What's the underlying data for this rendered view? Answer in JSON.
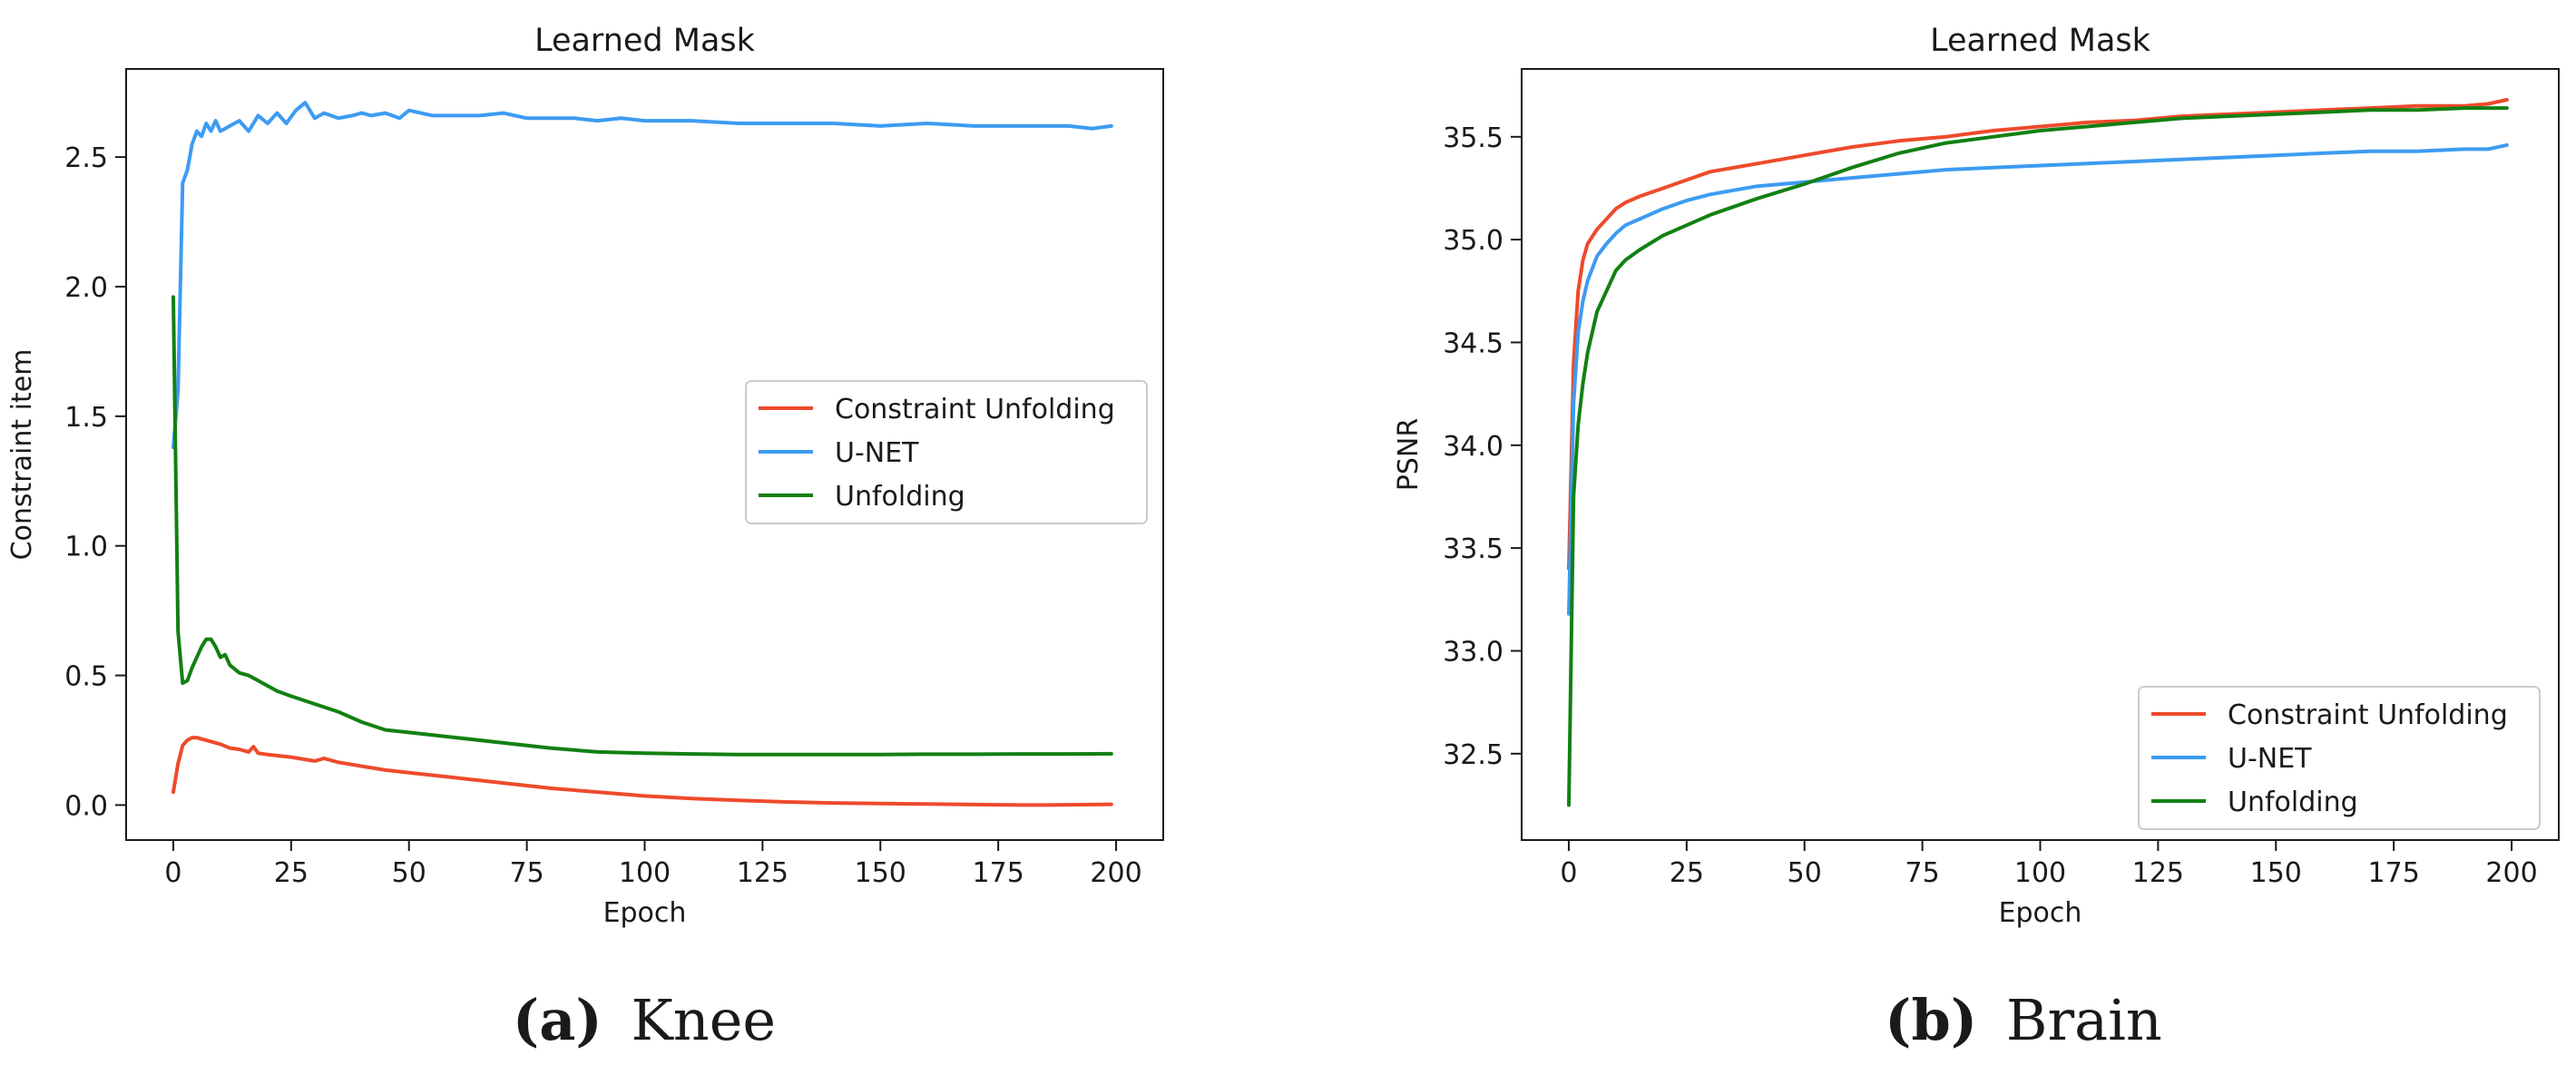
{
  "colors": {
    "constraint_unfolding": "#ee4a2c",
    "unet": "#3d9bf2",
    "unfolding": "#128012",
    "axis": "#1a1a1a"
  },
  "captions": [
    {
      "letter": "(a)",
      "label": "Knee"
    },
    {
      "letter": "(b)",
      "label": "Brain"
    }
  ],
  "chart_data": [
    {
      "type": "line",
      "title": "Learned Mask",
      "xlabel": "Epoch",
      "ylabel": "Constraint item",
      "xlim": [
        -10,
        210
      ],
      "ylim": [
        -0.135,
        2.84
      ],
      "xticks": [
        0,
        25,
        50,
        75,
        100,
        125,
        150,
        175,
        200
      ],
      "yticks": [
        0.0,
        0.5,
        1.0,
        1.5,
        2.0,
        2.5
      ],
      "tick_decimals": 1,
      "grid": false,
      "legend": "center-right",
      "series": [
        {
          "name": "Constraint Unfolding",
          "color_key": "constraint_unfolding",
          "x": [
            0,
            1,
            2,
            3,
            4,
            5,
            6,
            8,
            10,
            12,
            14,
            16,
            17,
            18,
            20,
            25,
            30,
            32,
            35,
            40,
            45,
            50,
            60,
            70,
            80,
            90,
            100,
            110,
            120,
            130,
            140,
            150,
            160,
            170,
            180,
            185,
            190,
            195,
            199
          ],
          "y": [
            0.05,
            0.16,
            0.23,
            0.25,
            0.26,
            0.26,
            0.255,
            0.245,
            0.235,
            0.22,
            0.215,
            0.205,
            0.225,
            0.2,
            0.195,
            0.185,
            0.17,
            0.18,
            0.165,
            0.15,
            0.135,
            0.125,
            0.105,
            0.085,
            0.065,
            0.05,
            0.035,
            0.025,
            0.018,
            0.012,
            0.008,
            0.006,
            0.004,
            0.002,
            0.0,
            0.0,
            0.001,
            0.002,
            0.003
          ]
        },
        {
          "name": "U-NET",
          "color_key": "unet",
          "x": [
            0,
            1,
            2,
            3,
            4,
            5,
            6,
            7,
            8,
            9,
            10,
            12,
            14,
            16,
            18,
            20,
            22,
            24,
            26,
            28,
            30,
            32,
            35,
            38,
            40,
            42,
            45,
            48,
            50,
            55,
            60,
            65,
            70,
            75,
            80,
            85,
            90,
            95,
            100,
            110,
            120,
            130,
            140,
            150,
            160,
            170,
            180,
            190,
            195,
            199
          ],
          "y": [
            1.38,
            1.6,
            2.4,
            2.45,
            2.55,
            2.6,
            2.58,
            2.63,
            2.6,
            2.64,
            2.6,
            2.62,
            2.64,
            2.6,
            2.66,
            2.63,
            2.67,
            2.63,
            2.68,
            2.71,
            2.65,
            2.67,
            2.65,
            2.66,
            2.67,
            2.66,
            2.67,
            2.65,
            2.68,
            2.66,
            2.66,
            2.66,
            2.67,
            2.65,
            2.65,
            2.65,
            2.64,
            2.65,
            2.64,
            2.64,
            2.63,
            2.63,
            2.63,
            2.62,
            2.63,
            2.62,
            2.62,
            2.62,
            2.61,
            2.62
          ]
        },
        {
          "name": "Unfolding",
          "color_key": "unfolding",
          "x": [
            0,
            1,
            2,
            3,
            4,
            5,
            6,
            7,
            8,
            9,
            10,
            11,
            12,
            14,
            16,
            18,
            20,
            22,
            25,
            30,
            35,
            40,
            45,
            50,
            60,
            70,
            80,
            90,
            100,
            110,
            120,
            130,
            140,
            150,
            160,
            170,
            180,
            190,
            199
          ],
          "y": [
            1.96,
            0.67,
            0.47,
            0.48,
            0.53,
            0.57,
            0.61,
            0.64,
            0.64,
            0.61,
            0.57,
            0.58,
            0.54,
            0.51,
            0.5,
            0.48,
            0.46,
            0.44,
            0.42,
            0.39,
            0.36,
            0.32,
            0.29,
            0.28,
            0.26,
            0.24,
            0.22,
            0.205,
            0.2,
            0.197,
            0.195,
            0.195,
            0.195,
            0.195,
            0.196,
            0.196,
            0.197,
            0.197,
            0.198
          ]
        }
      ]
    },
    {
      "type": "line",
      "title": "Learned Mask",
      "xlabel": "Epoch",
      "ylabel": "PSNR",
      "xlim": [
        -10,
        210
      ],
      "ylim": [
        32.08,
        35.83
      ],
      "xticks": [
        0,
        25,
        50,
        75,
        100,
        125,
        150,
        175,
        200
      ],
      "yticks": [
        32.5,
        33.0,
        33.5,
        34.0,
        34.5,
        35.0,
        35.5
      ],
      "tick_decimals": 1,
      "grid": false,
      "legend": "lower-right",
      "series": [
        {
          "name": "Constraint Unfolding",
          "color_key": "constraint_unfolding",
          "x": [
            0,
            1,
            2,
            3,
            4,
            6,
            8,
            10,
            12,
            15,
            20,
            25,
            30,
            40,
            50,
            60,
            70,
            80,
            90,
            100,
            110,
            120,
            130,
            140,
            150,
            160,
            170,
            180,
            190,
            195,
            199
          ],
          "y": [
            33.4,
            34.4,
            34.75,
            34.9,
            34.98,
            35.05,
            35.1,
            35.15,
            35.18,
            35.21,
            35.25,
            35.29,
            35.33,
            35.37,
            35.41,
            35.45,
            35.48,
            35.5,
            35.53,
            35.55,
            35.57,
            35.58,
            35.6,
            35.61,
            35.62,
            35.63,
            35.64,
            35.65,
            35.65,
            35.66,
            35.68
          ]
        },
        {
          "name": "U-NET",
          "color_key": "unet",
          "x": [
            0,
            1,
            2,
            3,
            4,
            6,
            8,
            10,
            12,
            15,
            20,
            25,
            30,
            40,
            50,
            60,
            70,
            80,
            90,
            100,
            110,
            120,
            130,
            140,
            150,
            160,
            170,
            180,
            190,
            195,
            199
          ],
          "y": [
            33.18,
            34.2,
            34.55,
            34.7,
            34.8,
            34.92,
            34.98,
            35.03,
            35.07,
            35.1,
            35.15,
            35.19,
            35.22,
            35.26,
            35.28,
            35.3,
            35.32,
            35.34,
            35.35,
            35.36,
            35.37,
            35.38,
            35.39,
            35.4,
            35.41,
            35.42,
            35.43,
            35.43,
            35.44,
            35.44,
            35.46
          ]
        },
        {
          "name": "Unfolding",
          "color_key": "unfolding",
          "x": [
            0,
            1,
            2,
            3,
            4,
            5,
            6,
            8,
            10,
            12,
            15,
            20,
            25,
            30,
            40,
            50,
            60,
            70,
            80,
            90,
            100,
            110,
            120,
            130,
            140,
            150,
            160,
            170,
            180,
            190,
            195,
            199
          ],
          "y": [
            32.25,
            33.75,
            34.1,
            34.3,
            34.45,
            34.55,
            34.65,
            34.75,
            34.85,
            34.9,
            34.95,
            35.02,
            35.07,
            35.12,
            35.2,
            35.27,
            35.35,
            35.42,
            35.47,
            35.5,
            35.53,
            35.55,
            35.57,
            35.59,
            35.6,
            35.61,
            35.62,
            35.63,
            35.63,
            35.64,
            35.64,
            35.64
          ]
        }
      ]
    }
  ]
}
